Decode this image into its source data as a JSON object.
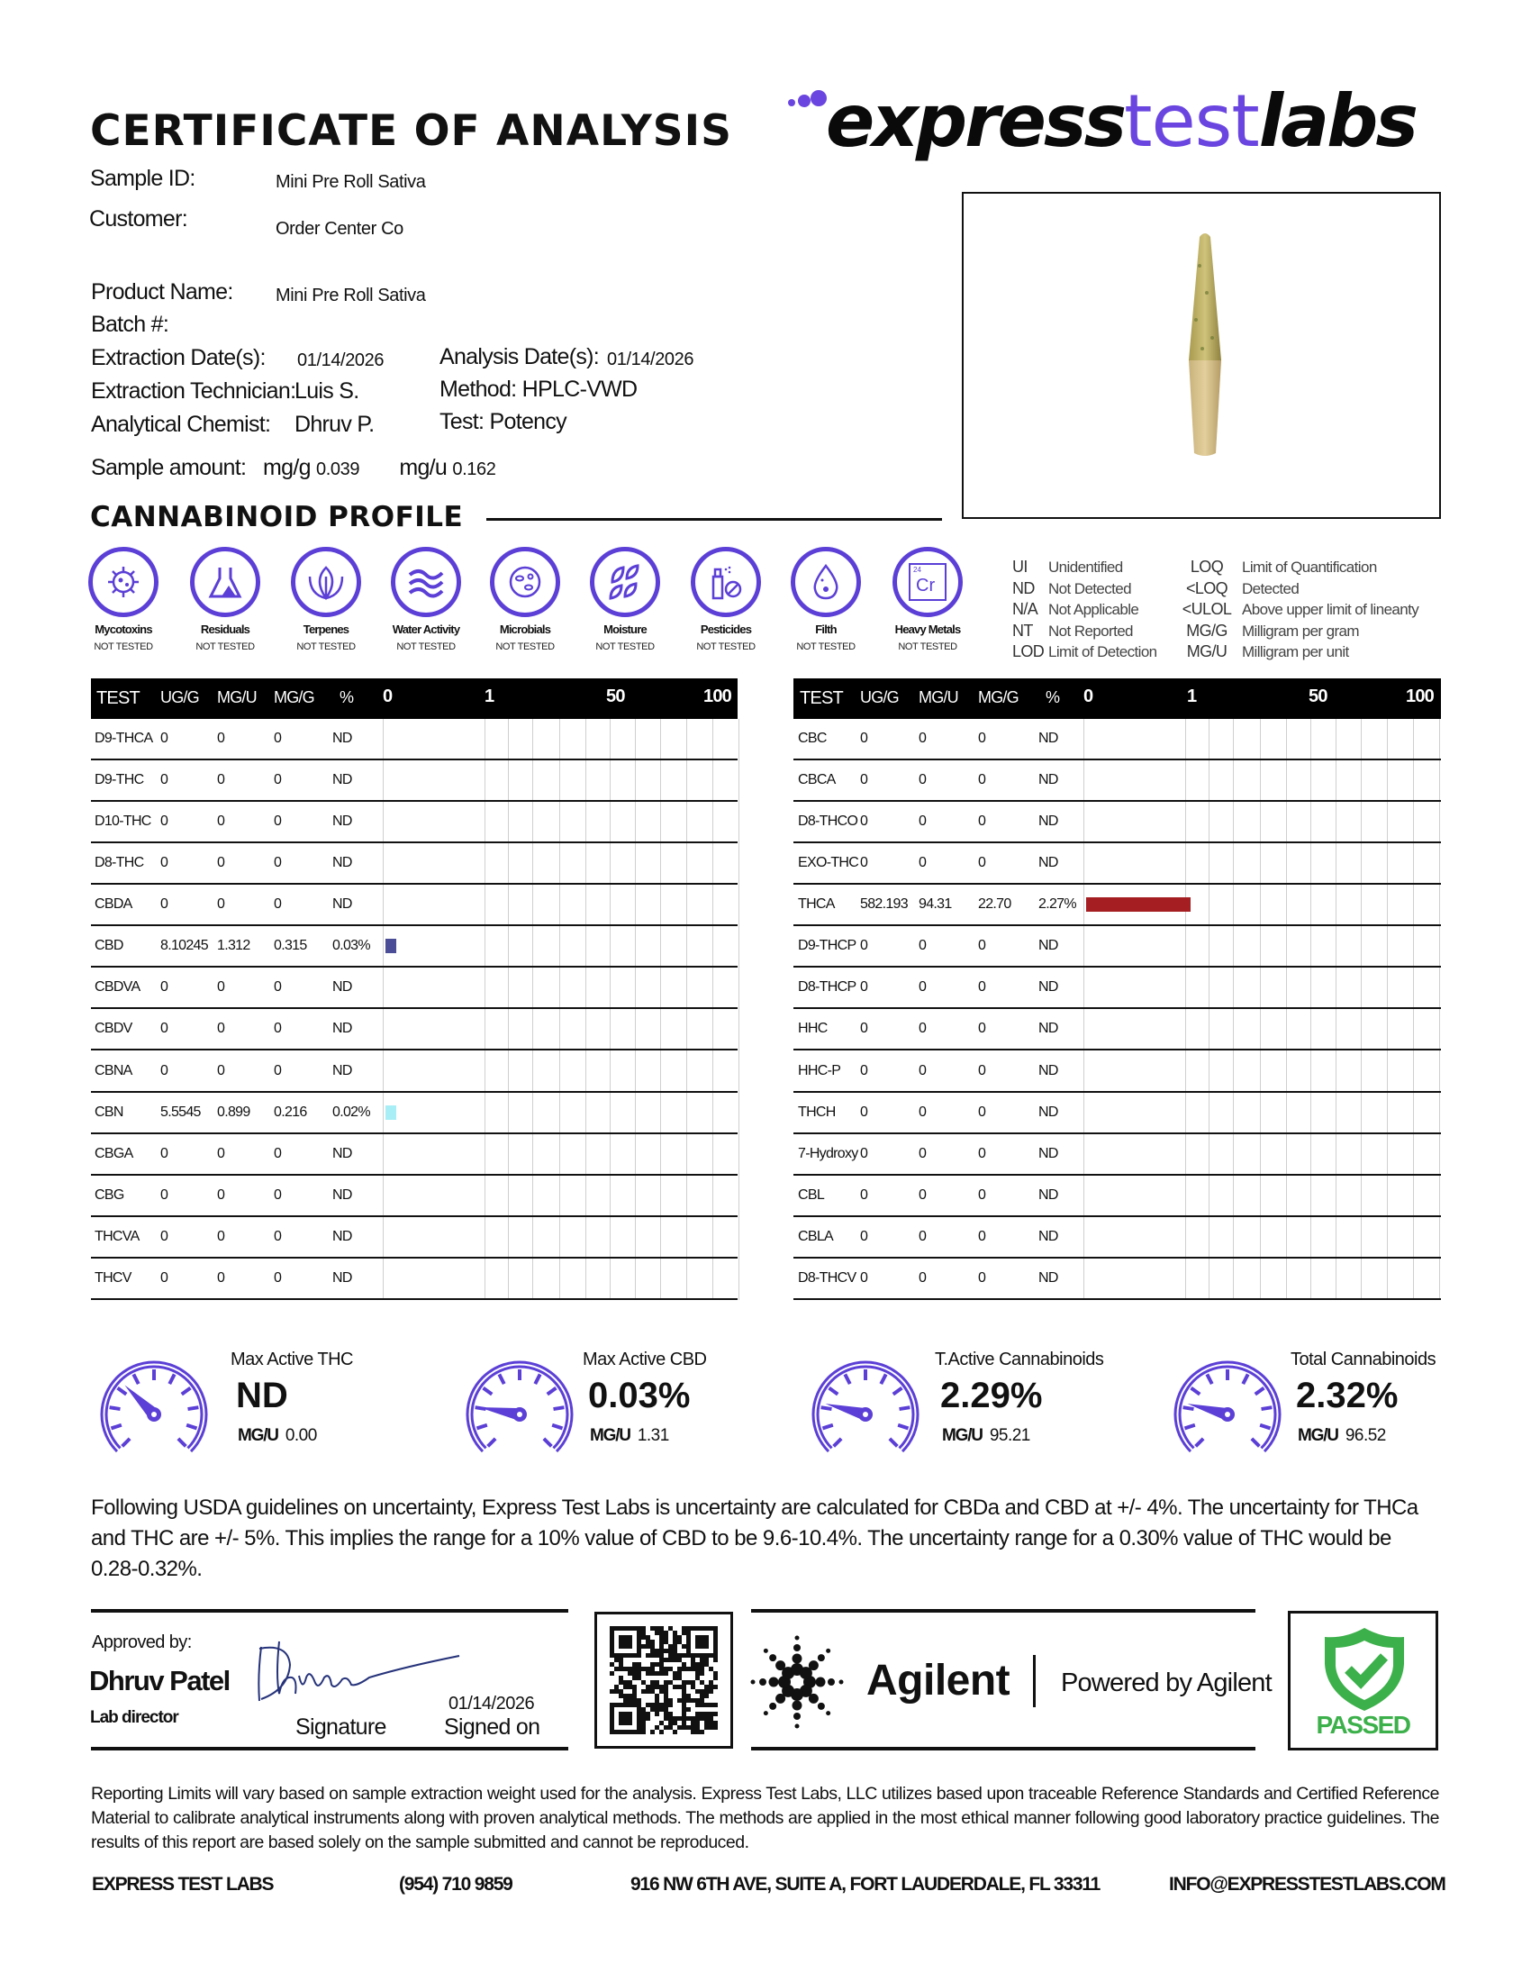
{
  "header": {
    "title": "CERTIFICATE OF ANALYSIS",
    "logo": {
      "part1": "express",
      "part2": "test",
      "part3": "labs"
    },
    "brand_color": "#6a45e0"
  },
  "sample": {
    "sample_id_label": "Sample ID:",
    "sample_id": "Mini Pre Roll Sativa",
    "customer_label": "Customer:",
    "customer": "Order Center Co",
    "product_name_label": "Product Name:",
    "product_name": "Mini Pre Roll Sativa",
    "batch_label": "Batch #:",
    "extraction_date_label": "Extraction Date(s):",
    "extraction_date": "01/14/2026",
    "analysis_date_label": "Analysis Date(s):",
    "analysis_date": "01/14/2026",
    "technician_label": "Extraction Technician:",
    "technician": "Luis S.",
    "method": "Method: HPLC-VWD",
    "chemist_label": "Analytical Chemist:",
    "chemist": "Dhruv P.",
    "test": "Test: Potency",
    "amount_label": "Sample amount:",
    "mg_g_label": "mg/g",
    "mg_g": "0.039",
    "mg_u_label": "mg/u",
    "mg_u": "0.162"
  },
  "profile_title": "CANNABINOID PROFILE",
  "tests": [
    {
      "name": "Mycotoxins",
      "status": "NOT TESTED",
      "icon": "mycotoxins-icon"
    },
    {
      "name": "Residuals",
      "status": "NOT TESTED",
      "icon": "residuals-icon"
    },
    {
      "name": "Terpenes",
      "status": "NOT TESTED",
      "icon": "terpenes-icon"
    },
    {
      "name": "Water Activity",
      "status": "NOT TESTED",
      "icon": "water-activity-icon"
    },
    {
      "name": "Microbials",
      "status": "NOT TESTED",
      "icon": "microbials-icon"
    },
    {
      "name": "Moisture",
      "status": "NOT TESTED",
      "icon": "moisture-icon"
    },
    {
      "name": "Pesticides",
      "status": "NOT TESTED",
      "icon": "pesticides-icon"
    },
    {
      "name": "Filth",
      "status": "NOT TESTED",
      "icon": "filth-icon"
    },
    {
      "name": "Heavy Metals",
      "status": "NOT TESTED",
      "icon": "heavy-metals-icon",
      "icon_text": [
        "24",
        "Cr"
      ]
    }
  ],
  "legend": [
    {
      "abbr": "UI",
      "desc": "Unidentified"
    },
    {
      "abbr": "ND",
      "desc": "Not Detected"
    },
    {
      "abbr": "N/A",
      "desc": "Not Applicable"
    },
    {
      "abbr": "NT",
      "desc": "Not Reported"
    },
    {
      "abbr": "LOD",
      "desc": "Limit of Detection"
    },
    {
      "abbr": "LOQ",
      "desc": "Limit of Quantification"
    },
    {
      "abbr": "<LOQ",
      "desc": "Detected"
    },
    {
      "abbr": "<ULOL",
      "desc": "Above upper limit of lineanty"
    },
    {
      "abbr": "MG/G",
      "desc": "Milligram per gram"
    },
    {
      "abbr": "MG/U",
      "desc": "Milligram per unit"
    }
  ],
  "table_headers": {
    "test": "TEST",
    "ug_g": "UG/G",
    "mg_u": "MG/U",
    "mg_g": "MG/G",
    "pct": "%",
    "ticks": [
      "0",
      "1",
      "50",
      "100"
    ]
  },
  "tables": [
    [
      {
        "test": "D9-THCA",
        "ug_g": "0",
        "mg_u": "0",
        "mg_g": "0",
        "pct": "ND",
        "value": 0
      },
      {
        "test": "D9-THC",
        "ug_g": "0",
        "mg_u": "0",
        "mg_g": "0",
        "pct": "ND",
        "value": 0
      },
      {
        "test": "D10-THC",
        "ug_g": "0",
        "mg_u": "0",
        "mg_g": "0",
        "pct": "ND",
        "value": 0
      },
      {
        "test": "D8-THC",
        "ug_g": "0",
        "mg_u": "0",
        "mg_g": "0",
        "pct": "ND",
        "value": 0
      },
      {
        "test": "CBDA",
        "ug_g": "0",
        "mg_u": "0",
        "mg_g": "0",
        "pct": "ND",
        "value": 0
      },
      {
        "test": "CBD",
        "ug_g": "8.10245",
        "mg_u": "1.312",
        "mg_g": "0.315",
        "pct": "0.03%",
        "value": 0.03,
        "color": "#4b4e96"
      },
      {
        "test": "CBDVA",
        "ug_g": "0",
        "mg_u": "0",
        "mg_g": "0",
        "pct": "ND",
        "value": 0
      },
      {
        "test": "CBDV",
        "ug_g": "0",
        "mg_u": "0",
        "mg_g": "0",
        "pct": "ND",
        "value": 0
      },
      {
        "test": "CBNA",
        "ug_g": "0",
        "mg_u": "0",
        "mg_g": "0",
        "pct": "ND",
        "value": 0
      },
      {
        "test": "CBN",
        "ug_g": "5.5545",
        "mg_u": "0.899",
        "mg_g": "0.216",
        "pct": "0.02%",
        "value": 0.02,
        "color": "#a8eef7"
      },
      {
        "test": "CBGA",
        "ug_g": "0",
        "mg_u": "0",
        "mg_g": "0",
        "pct": "ND",
        "value": 0
      },
      {
        "test": "CBG",
        "ug_g": "0",
        "mg_u": "0",
        "mg_g": "0",
        "pct": "ND",
        "value": 0
      },
      {
        "test": "THCVA",
        "ug_g": "0",
        "mg_u": "0",
        "mg_g": "0",
        "pct": "ND",
        "value": 0
      },
      {
        "test": "THCV",
        "ug_g": "0",
        "mg_u": "0",
        "mg_g": "0",
        "pct": "ND",
        "value": 0
      }
    ],
    [
      {
        "test": "CBC",
        "ug_g": "0",
        "mg_u": "0",
        "mg_g": "0",
        "pct": "ND",
        "value": 0
      },
      {
        "test": "CBCA",
        "ug_g": "0",
        "mg_u": "0",
        "mg_g": "0",
        "pct": "ND",
        "value": 0
      },
      {
        "test": "D8-THCO",
        "ug_g": "0",
        "mg_u": "0",
        "mg_g": "0",
        "pct": "ND",
        "value": 0
      },
      {
        "test": "EXO-THC",
        "ug_g": "0",
        "mg_u": "0",
        "mg_g": "0",
        "pct": "ND",
        "value": 0
      },
      {
        "test": "THCA",
        "ug_g": "582.193",
        "mg_u": "94.31",
        "mg_g": "22.70",
        "pct": "2.27%",
        "value": 2.27,
        "color": "#a51f22"
      },
      {
        "test": "D9-THCP",
        "ug_g": "0",
        "mg_u": "0",
        "mg_g": "0",
        "pct": "ND",
        "value": 0
      },
      {
        "test": "D8-THCP",
        "ug_g": "0",
        "mg_u": "0",
        "mg_g": "0",
        "pct": "ND",
        "value": 0
      },
      {
        "test": "HHC",
        "ug_g": "0",
        "mg_u": "0",
        "mg_g": "0",
        "pct": "ND",
        "value": 0
      },
      {
        "test": "HHC-P",
        "ug_g": "0",
        "mg_u": "0",
        "mg_g": "0",
        "pct": "ND",
        "value": 0
      },
      {
        "test": "THCH",
        "ug_g": "0",
        "mg_u": "0",
        "mg_g": "0",
        "pct": "ND",
        "value": 0
      },
      {
        "test": "7-Hydroxy",
        "ug_g": "0",
        "mg_u": "0",
        "mg_g": "0",
        "pct": "ND",
        "value": 0
      },
      {
        "test": "CBL",
        "ug_g": "0",
        "mg_u": "0",
        "mg_g": "0",
        "pct": "ND",
        "value": 0
      },
      {
        "test": "CBLA",
        "ug_g": "0",
        "mg_u": "0",
        "mg_g": "0",
        "pct": "ND",
        "value": 0
      },
      {
        "test": "D8-THCV",
        "ug_g": "0",
        "mg_u": "0",
        "mg_g": "0",
        "pct": "ND",
        "value": 0
      }
    ]
  ],
  "summary": [
    {
      "title": "Max Active THC",
      "value": "ND",
      "unit": "MG/U",
      "mgu": "0.00"
    },
    {
      "title": "Max Active CBD",
      "value": "0.03%",
      "unit": "MG/U",
      "mgu": "1.31"
    },
    {
      "title": "T.Active Cannabinoids",
      "value": "2.29%",
      "unit": "MG/U",
      "mgu": "95.21"
    },
    {
      "title": "Total Cannabinoids",
      "value": "2.32%",
      "unit": "MG/U",
      "mgu": "96.52"
    }
  ],
  "uncertainty": "Following USDA guidelines on uncertainty, Express Test Labs is uncertainty are calculated for CBDa and CBD at +/- 4%. The uncertainty for THCa and THC are +/- 5%. This implies the range for a 10% value of CBD to be 9.6-10.4%. The uncertainty range for a 0.30% value of THC would be 0.28-0.32%.",
  "approval": {
    "approved_by_label": "Approved by:",
    "name": "Dhruv Patel",
    "role": "Lab director",
    "signature_label": "Signature",
    "date": "01/14/2026",
    "signed_on_label": "Signed on"
  },
  "agilent": {
    "logo_text": "Agilent",
    "powered_by": "Powered by Agilent"
  },
  "status": {
    "label": "PASSED",
    "color": "#3cb04a"
  },
  "reporting": "Reporting Limits will vary based on sample extraction weight used for the analysis. Express Test Labs, LLC utilizes based upon traceable Reference Standards and Certified Reference Material to calibrate analytical instruments along with proven analytical methods. The methods are applied in the most ethical manner following good laboratory practice guidelines. The results of this report are based solely on the sample submitted and cannot be reproduced.",
  "footer": {
    "company": "EXPRESS TEST LABS",
    "phone": "(954) 710 9859",
    "address": "916 NW 6TH AVE, SUITE A, FORT LAUDERDALE, FL 33311",
    "email": "INFO@EXPRESSTESTLABS.COM"
  }
}
